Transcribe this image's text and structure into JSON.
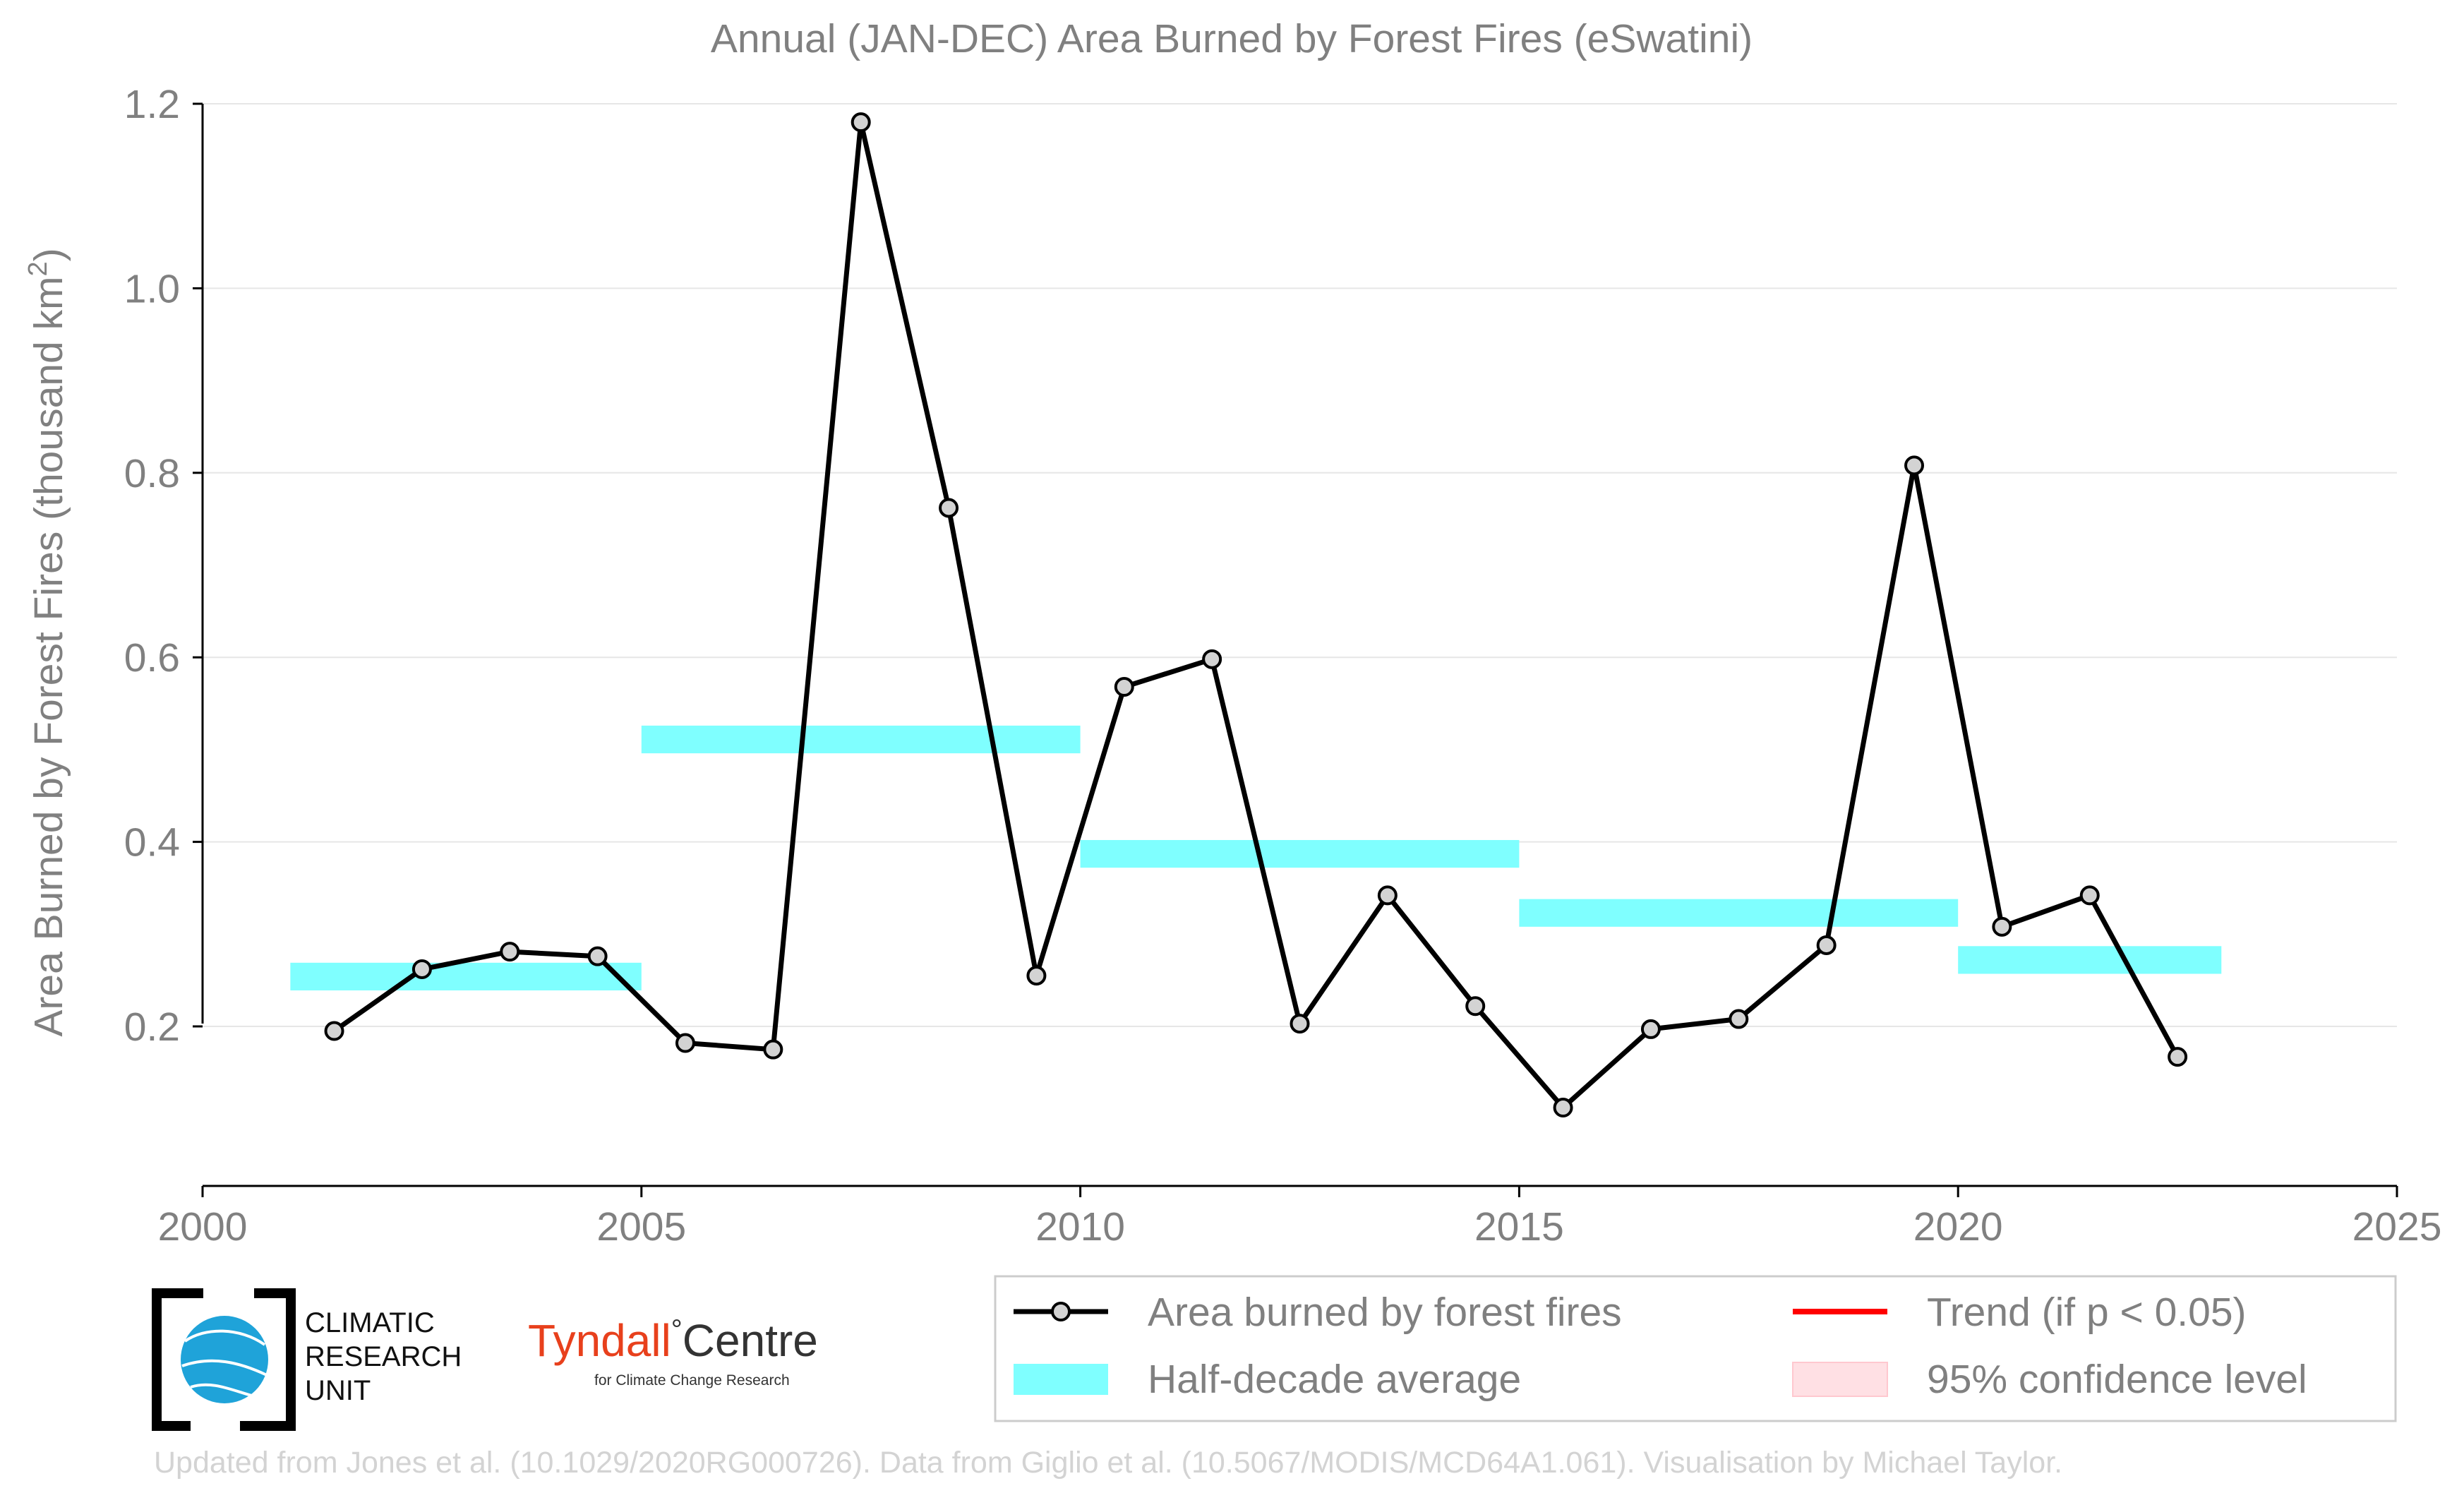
{
  "chart_data": {
    "type": "line",
    "title": "Annual (JAN-DEC) Area Burned by Forest Fires (eSwatini)",
    "ylabel": "Area Burned by Forest Fires (thousand km",
    "ylabel_superscript": "2",
    "ylabel_close": ")",
    "xlim": [
      2000,
      2025
    ],
    "ylim": [
      0.03,
      1.2
    ],
    "x_ticks": [
      2000,
      2005,
      2010,
      2015,
      2020,
      2025
    ],
    "y_ticks": [
      0.2,
      0.4,
      0.6,
      0.8,
      1.0,
      1.2
    ],
    "y_tick_labels": [
      "0.2",
      "0.4",
      "0.6",
      "0.8",
      "1.0",
      "1.2"
    ],
    "grid": "horizontal",
    "series": [
      {
        "name": "Area burned by forest fires",
        "color": "#000000",
        "x": [
          2001.5,
          2002.5,
          2003.5,
          2004.5,
          2005.5,
          2006.5,
          2007.5,
          2008.5,
          2009.5,
          2010.5,
          2011.5,
          2012.5,
          2013.5,
          2014.5,
          2015.5,
          2016.5,
          2017.5,
          2018.5,
          2019.5,
          2020.5,
          2021.5,
          2022.5
        ],
        "values": [
          0.195,
          0.262,
          0.281,
          0.276,
          0.182,
          0.175,
          1.18,
          0.762,
          0.255,
          0.568,
          0.598,
          0.203,
          0.342,
          0.222,
          0.112,
          0.197,
          0.208,
          0.288,
          0.808,
          0.308,
          0.342,
          0.167
        ]
      }
    ],
    "half_decade_average": {
      "name": "Half-decade average",
      "color": "#7fffff",
      "segments": [
        {
          "x0": 2001,
          "x1": 2005,
          "value": 0.254
        },
        {
          "x0": 2005,
          "x1": 2010,
          "value": 0.511
        },
        {
          "x0": 2010,
          "x1": 2015,
          "value": 0.387
        },
        {
          "x0": 2015,
          "x1": 2020,
          "value": 0.323
        },
        {
          "x0": 2020,
          "x1": 2023,
          "value": 0.272
        }
      ]
    },
    "legend": {
      "placement": "bottom-right",
      "entries": [
        {
          "label": "Area burned by forest fires",
          "swatch": "line-marker",
          "color": "#000000"
        },
        {
          "label": "Trend (if p < 0.05)",
          "swatch": "line",
          "color": "#ff0000"
        },
        {
          "label": "Half-decade average",
          "swatch": "band",
          "color": "#7fffff"
        },
        {
          "label": "95% confidence level",
          "swatch": "band",
          "color": "#ffe0e4"
        }
      ]
    }
  },
  "branding": {
    "cru_lines": [
      "CLIMATIC",
      "RESEARCH",
      "UNIT"
    ],
    "tyndall_name_1": "Tyndall",
    "tyndall_degree": "°",
    "tyndall_name_2": "Centre",
    "tyndall_sub": "for Climate Change Research"
  },
  "credit": "Updated from Jones et al. (10.1029/2020RG000726). Data from Giglio et al. (10.5067/MODIS/MCD64A1.061). Visualisation by Michael Taylor."
}
